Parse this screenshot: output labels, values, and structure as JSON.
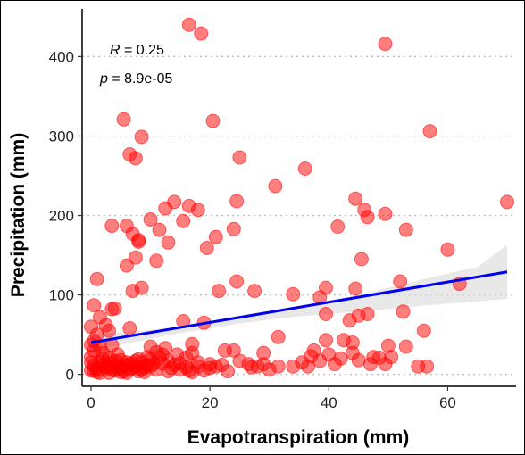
{
  "chart_data": {
    "type": "scatter",
    "xlabel": "Evapotranspiration (mm)",
    "ylabel": "Precipitation (mm)",
    "xlim": [
      -1.5,
      71.5
    ],
    "ylim": [
      -15,
      460
    ],
    "x_ticks": [
      0,
      20,
      40,
      60
    ],
    "y_ticks": [
      0,
      100,
      200,
      300,
      400
    ],
    "grid": "horizontal dotted",
    "legend": "none",
    "colors": {
      "points": "#ff0000",
      "fit_line": "#0000ee",
      "band": "#d9d9d9"
    },
    "annotations": [
      {
        "var": "R",
        "text": " = 0.25"
      },
      {
        "var": "p",
        "text": " = 8.9e-05"
      }
    ],
    "fit_line": {
      "x": [
        0,
        70
      ],
      "y": [
        40,
        129
      ]
    },
    "confidence_band": {
      "x": [
        0,
        5,
        10,
        15,
        20,
        25,
        30,
        35,
        40,
        45,
        50,
        55,
        60,
        65,
        70
      ],
      "lower": [
        29,
        37,
        45,
        52,
        58,
        64,
        69,
        73,
        76,
        79,
        82,
        86,
        89,
        92,
        95
      ],
      "upper": [
        51,
        53,
        56,
        60,
        65,
        71,
        77,
        84,
        92,
        100,
        109,
        118,
        127,
        135,
        163
      ]
    },
    "points": [
      [
        16.5,
        440
      ],
      [
        18.5,
        429
      ],
      [
        49.5,
        416
      ],
      [
        5.5,
        321
      ],
      [
        20.5,
        319
      ],
      [
        8.5,
        299
      ],
      [
        57,
        306
      ],
      [
        6.5,
        277
      ],
      [
        7.5,
        272
      ],
      [
        25,
        273
      ],
      [
        36,
        259
      ],
      [
        14,
        217
      ],
      [
        16.5,
        212
      ],
      [
        18,
        207
      ],
      [
        12.5,
        209
      ],
      [
        24.5,
        218
      ],
      [
        31,
        237
      ],
      [
        44.5,
        221
      ],
      [
        70,
        217
      ],
      [
        3.5,
        187
      ],
      [
        6,
        187
      ],
      [
        7,
        177
      ],
      [
        8,
        167
      ],
      [
        10,
        195
      ],
      [
        11.5,
        182
      ],
      [
        15.5,
        193
      ],
      [
        21,
        173
      ],
      [
        24,
        183
      ],
      [
        19.5,
        159
      ],
      [
        46,
        207
      ],
      [
        46.5,
        198
      ],
      [
        49.5,
        202
      ],
      [
        53,
        182
      ],
      [
        60,
        157
      ],
      [
        41.5,
        186
      ],
      [
        6,
        137
      ],
      [
        7.5,
        147
      ],
      [
        8,
        169
      ],
      [
        11,
        143
      ],
      [
        13,
        166
      ],
      [
        1,
        120
      ],
      [
        7,
        105
      ],
      [
        8.5,
        109
      ],
      [
        21.5,
        105
      ],
      [
        24.5,
        117
      ],
      [
        27.5,
        105
      ],
      [
        34,
        101
      ],
      [
        38.5,
        97
      ],
      [
        39.5,
        109
      ],
      [
        44.5,
        108
      ],
      [
        45.5,
        145
      ],
      [
        52,
        117
      ],
      [
        62,
        114
      ],
      [
        4,
        83
      ],
      [
        3.5,
        82
      ],
      [
        0.5,
        87
      ],
      [
        1.5,
        72
      ],
      [
        2.5,
        62
      ],
      [
        0,
        60
      ],
      [
        6.5,
        58
      ],
      [
        15.5,
        67
      ],
      [
        19,
        65
      ],
      [
        39.5,
        76
      ],
      [
        43.5,
        68
      ],
      [
        45,
        74
      ],
      [
        46.5,
        76
      ],
      [
        52.5,
        79
      ],
      [
        56,
        55
      ],
      [
        1,
        50
      ],
      [
        3,
        55
      ],
      [
        0.5,
        42
      ],
      [
        3.5,
        37
      ],
      [
        10,
        35
      ],
      [
        12.5,
        33
      ],
      [
        17,
        38
      ],
      [
        22.5,
        30
      ],
      [
        29,
        27
      ],
      [
        31.5,
        47
      ],
      [
        37.5,
        30
      ],
      [
        39.5,
        43
      ],
      [
        42.5,
        43
      ],
      [
        44,
        40
      ],
      [
        37,
        23
      ],
      [
        38.5,
        17
      ],
      [
        40,
        25
      ],
      [
        42,
        20
      ],
      [
        44,
        27
      ],
      [
        45,
        18
      ],
      [
        47.5,
        22
      ],
      [
        48.5,
        21
      ],
      [
        50,
        36
      ],
      [
        50.5,
        22
      ],
      [
        53,
        35
      ],
      [
        55,
        10
      ],
      [
        56.5,
        10
      ],
      [
        47,
        13
      ],
      [
        49.5,
        13
      ],
      [
        36.5,
        10
      ],
      [
        34,
        10
      ],
      [
        35.5,
        15
      ],
      [
        41,
        13
      ],
      [
        31.5,
        10
      ],
      [
        29,
        13
      ],
      [
        28,
        10
      ],
      [
        26.5,
        13
      ],
      [
        25,
        17
      ],
      [
        24,
        30
      ],
      [
        21,
        10
      ],
      [
        20,
        13
      ],
      [
        18,
        15
      ],
      [
        17,
        27
      ],
      [
        16,
        21
      ],
      [
        14.5,
        25
      ],
      [
        13,
        17
      ],
      [
        11.5,
        21
      ],
      [
        10.5,
        13
      ],
      [
        9.5,
        22
      ],
      [
        8.5,
        15
      ],
      [
        7.5,
        10
      ],
      [
        6.5,
        6
      ],
      [
        5.5,
        12
      ],
      [
        4.5,
        8
      ],
      [
        3.5,
        14
      ],
      [
        2.5,
        9
      ],
      [
        1.5,
        16
      ],
      [
        0.5,
        11
      ],
      [
        0,
        22
      ],
      [
        0,
        5
      ],
      [
        1,
        3
      ],
      [
        2,
        27
      ],
      [
        3,
        21
      ],
      [
        4,
        5
      ],
      [
        5,
        18
      ],
      [
        6,
        2
      ],
      [
        7,
        14
      ],
      [
        8,
        4
      ],
      [
        9,
        9
      ],
      [
        10,
        19
      ],
      [
        11,
        6
      ],
      [
        12,
        25
      ],
      [
        13,
        4
      ],
      [
        14,
        12
      ],
      [
        15,
        6
      ],
      [
        16,
        9
      ],
      [
        17,
        3
      ],
      [
        18,
        10
      ],
      [
        19,
        5
      ],
      [
        20,
        8
      ],
      [
        22,
        12
      ],
      [
        23,
        4
      ],
      [
        27,
        9
      ],
      [
        30,
        6
      ],
      [
        0.5,
        30
      ],
      [
        1.5,
        35
      ],
      [
        2,
        12
      ],
      [
        3,
        2
      ],
      [
        4.5,
        25
      ],
      [
        5,
        3
      ],
      [
        6,
        15
      ],
      [
        7,
        8
      ],
      [
        8,
        19
      ],
      [
        9,
        3
      ],
      [
        10,
        10
      ],
      [
        11,
        28
      ],
      [
        12,
        14
      ],
      [
        13.5,
        8
      ],
      [
        15,
        14
      ],
      [
        16.5,
        5
      ],
      [
        0,
        15
      ],
      [
        0.5,
        5
      ],
      [
        1,
        7
      ],
      [
        1.5,
        2
      ],
      [
        2,
        19
      ],
      [
        2.5,
        13
      ],
      [
        3,
        9
      ],
      [
        3.5,
        6
      ],
      [
        4,
        17
      ],
      [
        4.5,
        11
      ],
      [
        5,
        8
      ],
      [
        5.5,
        4
      ],
      [
        6.5,
        13
      ],
      [
        7.5,
        17
      ],
      [
        8.5,
        6
      ],
      [
        9.5,
        12
      ],
      [
        0,
        37
      ]
    ]
  }
}
